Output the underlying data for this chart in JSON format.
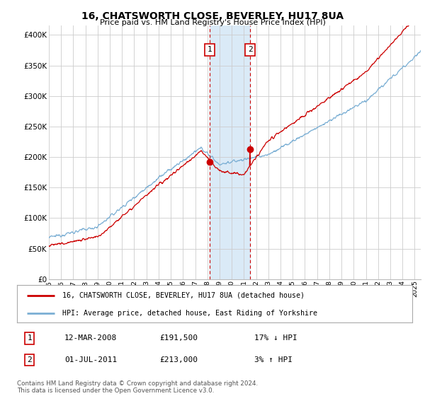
{
  "title": "16, CHATSWORTH CLOSE, BEVERLEY, HU17 8UA",
  "subtitle": "Price paid vs. HM Land Registry's House Price Index (HPI)",
  "ylabel_vals": [
    0,
    50000,
    100000,
    150000,
    200000,
    250000,
    300000,
    350000,
    400000
  ],
  "ylim": [
    0,
    415000
  ],
  "xlim_start": 1995.0,
  "xlim_end": 2025.5,
  "transaction1_date": 2008.19,
  "transaction1_price": 191500,
  "transaction1_label": "1",
  "transaction2_date": 2011.5,
  "transaction2_price": 213000,
  "transaction2_label": "2",
  "shade_start": 2008.19,
  "shade_end": 2011.5,
  "hpi_color": "#7bafd4",
  "price_color": "#cc0000",
  "shade_color": "#daeaf7",
  "vline_color": "#cc0000",
  "legend1_text": "16, CHATSWORTH CLOSE, BEVERLEY, HU17 8UA (detached house)",
  "legend2_text": "HPI: Average price, detached house, East Riding of Yorkshire",
  "table_row1": [
    "1",
    "12-MAR-2008",
    "£191,500",
    "17% ↓ HPI"
  ],
  "table_row2": [
    "2",
    "01-JUL-2011",
    "£213,000",
    "3% ↑ HPI"
  ],
  "footer": "Contains HM Land Registry data © Crown copyright and database right 2024.\nThis data is licensed under the Open Government Licence v3.0.",
  "background_color": "#ffffff",
  "grid_color": "#cccccc"
}
